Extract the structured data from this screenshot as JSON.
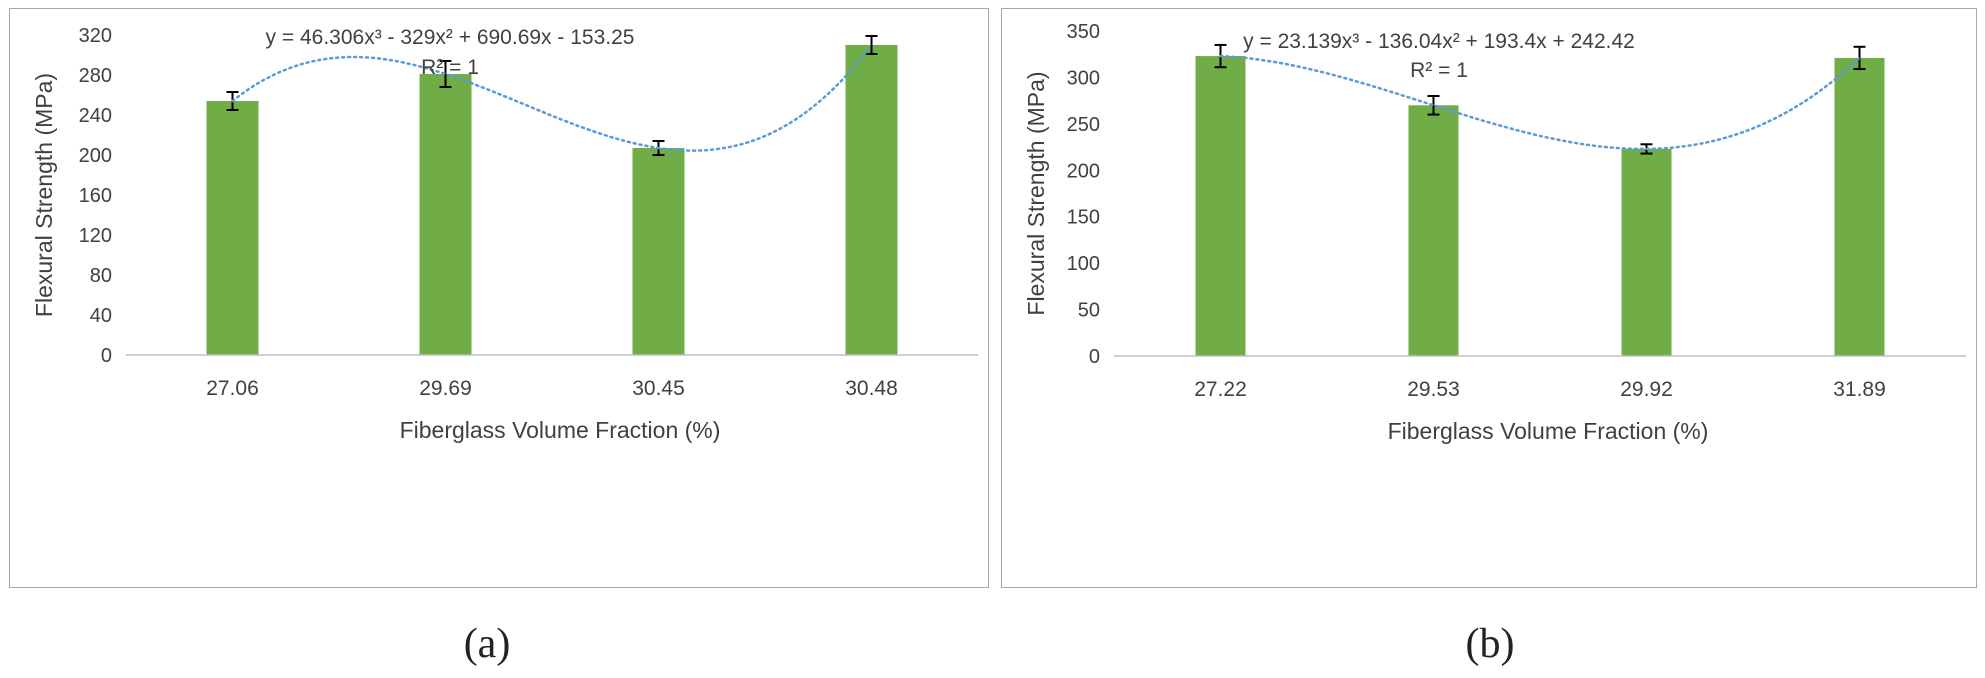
{
  "chart_data": [
    {
      "type": "bar",
      "categories": [
        "27.06",
        "29.69",
        "30.45",
        "30.48"
      ],
      "values": [
        254,
        281,
        207,
        310
      ],
      "errors": [
        9,
        13,
        7,
        9
      ],
      "xlabel": "Fiberglass Volume Fraction (%)",
      "ylabel": "Flexural Strength (MPa)",
      "ylim": [
        0,
        320
      ],
      "yticks": [
        0,
        40,
        80,
        120,
        160,
        200,
        240,
        280,
        320
      ],
      "trendline": {
        "type": "polynomial-3",
        "style": "dotted",
        "equation": "y = 46.306x³ - 329x² + 690.69x - 153.25",
        "r_squared": "R² = 1"
      },
      "bar_color": "#70ad47",
      "trend_color": "#5b9bd5",
      "caption": "(a)"
    },
    {
      "type": "bar",
      "categories": [
        "27.22",
        "29.53",
        "29.92",
        "31.89"
      ],
      "values": [
        323,
        270,
        223,
        321
      ],
      "errors": [
        12,
        10,
        5,
        12
      ],
      "xlabel": "Fiberglass Volume Fraction (%)",
      "ylabel": "Flexural Strength (MPa)",
      "ylim": [
        0,
        350
      ],
      "yticks": [
        0,
        50,
        100,
        150,
        200,
        250,
        300,
        350
      ],
      "trendline": {
        "type": "polynomial-3",
        "style": "dotted",
        "equation": "y = 23.139x³ - 136.04x² + 193.4x + 242.42",
        "r_squared": "R² = 1"
      },
      "bar_color": "#70ad47",
      "trend_color": "#5b9bd5",
      "caption": "(b)"
    }
  ]
}
